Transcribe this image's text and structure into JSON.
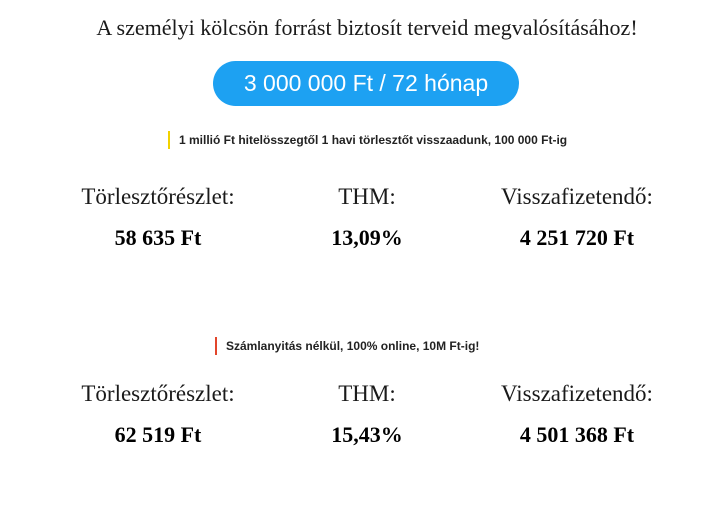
{
  "headline": "A személyi kölcsön forrást biztosít terveid megvalósításához!",
  "amount_button": "3 000 000 Ft / 72 hónap",
  "colors": {
    "accent": "#1da1f2",
    "offer1_bar": "#f2d200",
    "offer2_bar": "#e2452b"
  },
  "offers": [
    {
      "note": "1 millió Ft hitelösszegtől 1 havi törlesztőt visszaadunk, 100 000 Ft-ig",
      "stats": [
        {
          "label": "Törlesztőrészlet:",
          "value": "58 635 Ft"
        },
        {
          "label": "THM:",
          "value": "13,09%"
        },
        {
          "label": "Visszafizetendő:",
          "value": "4 251 720 Ft"
        }
      ]
    },
    {
      "note": "Számlanyitás nélkül, 100% online, 10M Ft-ig!",
      "stats": [
        {
          "label": "Törlesztőrészlet:",
          "value": "62 519 Ft"
        },
        {
          "label": "THM:",
          "value": "15,43%"
        },
        {
          "label": "Visszafizetendő:",
          "value": "4 501 368 Ft"
        }
      ]
    }
  ]
}
